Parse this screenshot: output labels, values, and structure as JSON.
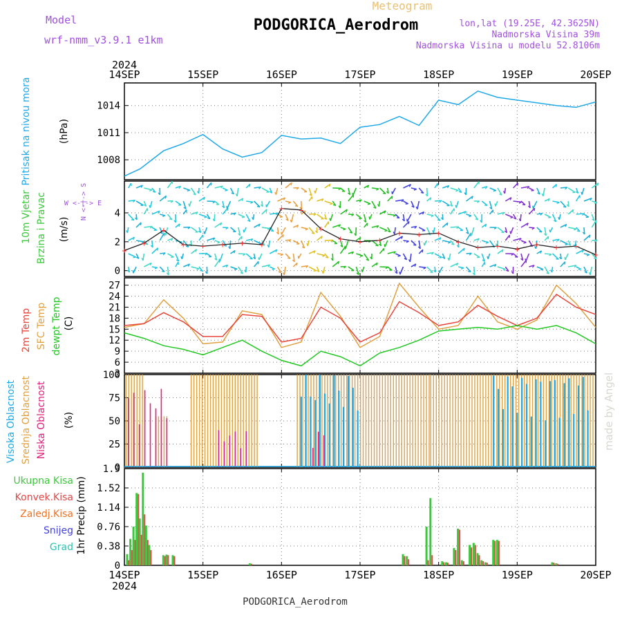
{
  "header": {
    "model_label": "Model",
    "model_name": "wrf-nmm_v3.9.1  e1km",
    "title": "PODGORICA_Aerodrom",
    "subtitle": "Meteogram",
    "lonlat": "lon,lat (19.25E, 42.3625N)",
    "elevation": "Nadmorska Visina 39m",
    "model_elevation": "Nadmorska Visina u modelu 52.8106m",
    "credit": "made by Angel",
    "footer": "PODGORICA_Aerodrom"
  },
  "colors": {
    "pressure": "#1fa8e8",
    "temp2m": "#e8443a",
    "sfc": "#e0a040",
    "dewpt": "#20c820",
    "high_cloud": "#1fa8e8",
    "mid_cloud": "#e0a040",
    "low_cloud": "#e0207a",
    "total_precip": "#3cc83c",
    "convective": "#e04848",
    "freezing": "#f07020",
    "snow": "#4040e0",
    "hail": "#30c0b0",
    "label_purple": "#a050e0"
  },
  "chart_data": [
    {
      "type": "line",
      "panel": "pressure",
      "ylabel": "Pritisak na nivou mora",
      "units": "(hPa)",
      "year": "2024",
      "x_ticks": [
        "14SEP",
        "15SEP",
        "16SEP",
        "17SEP",
        "18SEP",
        "19SEP",
        "20SEP"
      ],
      "ylim": [
        1005.8,
        1016.5
      ],
      "y_ticks": [
        1008,
        1011,
        1014
      ],
      "x": [
        0,
        0.2,
        0.5,
        0.75,
        1,
        1.25,
        1.5,
        1.75,
        2,
        2.25,
        2.5,
        2.75,
        3,
        3.25,
        3.5,
        3.75,
        4,
        4.25,
        4.5,
        4.75,
        5,
        5.25,
        5.5,
        5.75,
        6
      ],
      "series": [
        {
          "values": [
            1006.2,
            1007.0,
            1009.0,
            1009.8,
            1010.8,
            1009.2,
            1008.3,
            1008.8,
            1010.7,
            1010.3,
            1010.4,
            1009.8,
            1011.6,
            1011.9,
            1012.8,
            1011.8,
            1014.6,
            1014.1,
            1015.6,
            1014.9,
            1014.6,
            1014.3,
            1014.0,
            1013.8,
            1014.4
          ]
        }
      ]
    },
    {
      "type": "scatter",
      "panel": "wind",
      "ylabel": "10m Vjetar",
      "ylabel2": "Brzina i Pravac",
      "units": "(m/s)",
      "compass": "W <-|-> E",
      "compass_n": "N <-|-> S",
      "ylim": [
        -0.4,
        6.2
      ],
      "y_ticks": [
        0,
        2,
        4
      ],
      "x": [
        0,
        0.25,
        0.5,
        0.75,
        1,
        1.25,
        1.5,
        1.75,
        2,
        2.25,
        2.5,
        2.75,
        3,
        3.25,
        3.5,
        3.75,
        4,
        4.25,
        4.5,
        4.75,
        5,
        5.25,
        5.5,
        5.75,
        6
      ],
      "series": [
        {
          "name": "speed",
          "values": [
            1.4,
            1.9,
            2.8,
            1.8,
            1.7,
            1.8,
            1.9,
            1.8,
            4.3,
            4.2,
            2.9,
            2.2,
            2.0,
            2.1,
            2.6,
            2.5,
            2.6,
            2.0,
            1.6,
            1.7,
            1.5,
            1.8,
            1.6,
            1.7,
            1.1
          ]
        }
      ]
    },
    {
      "type": "line",
      "panel": "temperature",
      "ylabel": "2m Temp",
      "ylabel2": "SFC Temp",
      "ylabel3": "dewpt Temp",
      "units": "(C)",
      "ylim": [
        3,
        29
      ],
      "y_ticks": [
        3,
        6,
        9,
        12,
        15,
        18,
        21,
        24,
        27
      ],
      "x": [
        0,
        0.25,
        0.5,
        0.75,
        1,
        1.25,
        1.5,
        1.75,
        2,
        2.25,
        2.5,
        2.75,
        3,
        3.25,
        3.5,
        3.75,
        4,
        4.25,
        4.5,
        4.75,
        5,
        5.25,
        5.5,
        5.75,
        6
      ],
      "series": [
        {
          "name": "2m",
          "values": [
            16.0,
            16.5,
            19.5,
            17.0,
            13.0,
            13.0,
            19.0,
            18.5,
            11.5,
            12.5,
            21.0,
            18.0,
            11.5,
            14.0,
            22.5,
            19.5,
            16.0,
            17.0,
            21.5,
            18.5,
            16.0,
            18.0,
            24.5,
            21.0,
            19.0
          ]
        },
        {
          "name": "sfc",
          "values": [
            15.5,
            16.5,
            23.0,
            18.0,
            11.0,
            11.5,
            20.0,
            19.0,
            10.0,
            11.5,
            25.0,
            18.5,
            10.0,
            13.0,
            27.5,
            21.0,
            15.0,
            16.0,
            24.0,
            17.0,
            15.0,
            17.5,
            27.0,
            22.0,
            15.5
          ]
        },
        {
          "name": "dewpt",
          "values": [
            14.0,
            12.5,
            10.5,
            9.5,
            8.0,
            10.0,
            12.0,
            9.0,
            6.5,
            5.0,
            9.0,
            7.5,
            5.0,
            8.5,
            10.0,
            12.0,
            14.5,
            15.0,
            15.5,
            15.0,
            16.0,
            15.0,
            16.0,
            14.0,
            11.0
          ]
        }
      ]
    },
    {
      "type": "bar",
      "panel": "cloud",
      "ylabel": "Visoka Oblacnost",
      "ylabel2": "Srednja Oblacnost",
      "ylabel3": "Niska Oblacnost",
      "units": "(%)",
      "ylim": [
        0,
        100
      ],
      "y_ticks": [
        0,
        25,
        50,
        75,
        100
      ],
      "mid_cover": [
        {
          "from": 0.02,
          "to": 0.25,
          "value": 100
        },
        {
          "from": 0.4,
          "to": 0.55,
          "value": 55
        },
        {
          "from": 0.85,
          "to": 1.7,
          "value": 100
        },
        {
          "from": 2.2,
          "to": 3.9,
          "value": 100
        },
        {
          "from": 3.9,
          "to": 6.0,
          "value": 100
        }
      ],
      "high_cover": [
        {
          "from": 2.25,
          "to": 3.0,
          "value": 100
        },
        {
          "from": 4.7,
          "to": 5.9,
          "value": 100
        }
      ],
      "low_cover": [
        {
          "from": 0.05,
          "to": 0.6,
          "value": 85
        },
        {
          "from": 1.2,
          "to": 1.6,
          "value": 40
        },
        {
          "from": 2.4,
          "to": 2.6,
          "value": 40
        }
      ]
    },
    {
      "type": "bar",
      "panel": "precip",
      "ylabel": "1hr Precip (mm)",
      "legend": [
        "Ukupna Kisa",
        "Konvek.Kisa",
        "Zaledj.Kisa",
        "Snijeg",
        "Grad"
      ],
      "ylim": [
        0,
        1.9
      ],
      "y_ticks": [
        0,
        0.38,
        0.76,
        1.14,
        1.52,
        1.9
      ],
      "y_tick_labels": [
        "0",
        "0.38",
        "0.76",
        "1.14",
        "1.52",
        "1.9"
      ],
      "x": [
        0.04,
        0.08,
        0.12,
        0.16,
        0.2,
        0.24,
        0.28,
        0.32,
        0.5,
        0.54,
        0.62,
        1.6,
        3.55,
        3.6,
        3.85,
        3.9,
        4.05,
        4.1,
        4.2,
        4.25,
        4.3,
        4.4,
        4.45,
        4.5,
        4.55,
        4.6,
        4.7,
        4.75,
        5.45,
        5.5
      ],
      "series": [
        {
          "name": "Ukupna Kisa",
          "values": [
            0.22,
            0.52,
            0.76,
            1.42,
            0.92,
            1.82,
            0.78,
            0.4,
            0.2,
            0.21,
            0.2,
            0.04,
            0.22,
            0.18,
            0.76,
            1.32,
            0.08,
            0.06,
            0.34,
            0.72,
            0.1,
            0.4,
            0.44,
            0.24,
            0.1,
            0.06,
            0.5,
            0.5,
            0.06,
            0.04
          ]
        },
        {
          "name": "Konvek.Kisa",
          "values": [
            0.1,
            0.3,
            0.5,
            1.4,
            0.6,
            1.0,
            0.5,
            0.3,
            0.18,
            0.2,
            0.18,
            0.03,
            0.18,
            0.12,
            0.1,
            0.2,
            0.06,
            0.05,
            0.3,
            0.7,
            0.08,
            0.35,
            0.4,
            0.2,
            0.08,
            0.05,
            0.48,
            0.48,
            0.05,
            0.03
          ]
        }
      ]
    }
  ]
}
